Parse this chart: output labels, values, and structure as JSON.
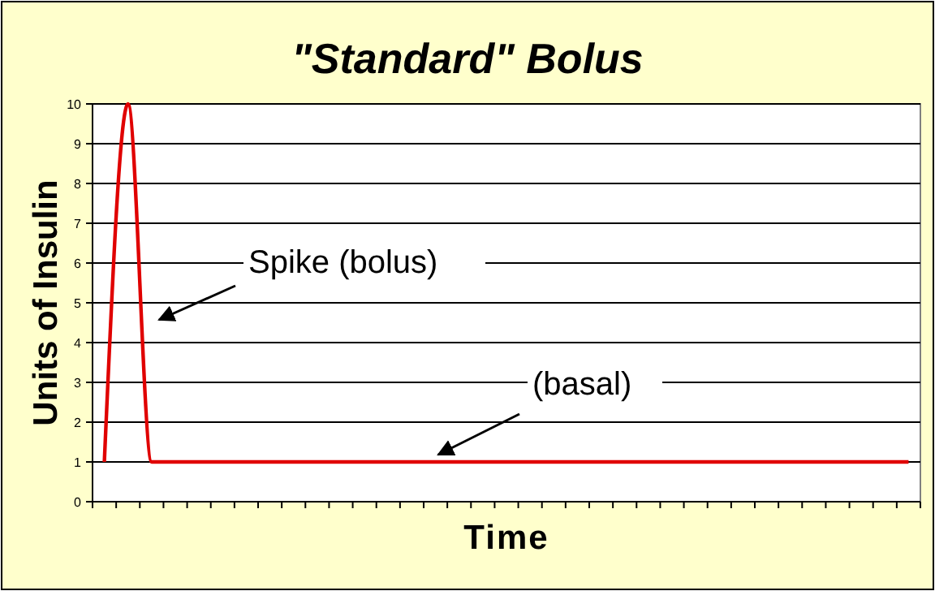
{
  "chart_data": {
    "type": "line",
    "title": "\"Standard\" Bolus",
    "xlabel": "Time",
    "ylabel": "Units of Insulin",
    "categories": [
      null,
      null,
      null,
      null,
      null,
      null,
      null,
      null,
      null,
      null,
      null,
      null,
      null,
      null,
      null,
      null,
      null,
      null,
      null,
      null,
      null,
      null,
      null,
      null,
      null,
      null,
      null,
      null,
      null,
      null,
      null,
      null,
      null,
      null,
      null
    ],
    "series": [
      {
        "color": "#e00000",
        "values": [
          1,
          10,
          1,
          1,
          1,
          1,
          1,
          1,
          1,
          1,
          1,
          1,
          1,
          1,
          1,
          1,
          1,
          1,
          1,
          1,
          1,
          1,
          1,
          1,
          1,
          1,
          1,
          1,
          1,
          1,
          1,
          1,
          1,
          1,
          1
        ]
      }
    ],
    "ylim": [
      0,
      10
    ],
    "yticks": [
      0,
      1,
      2,
      3,
      4,
      5,
      6,
      7,
      8,
      9,
      10
    ],
    "grid": "y",
    "marker": "none",
    "line_style": "solid",
    "annotations": [
      "Spike (bolus)",
      "(basal)"
    ]
  }
}
